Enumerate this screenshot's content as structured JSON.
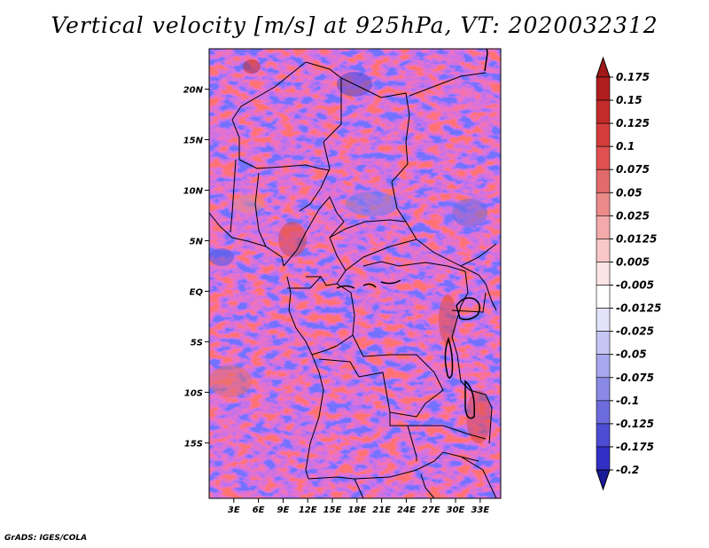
{
  "title": "Vertical velocity [m/s] at 925hPa, VT: 2020032312",
  "credit": "GrADS: IGES/COLA",
  "map": {
    "lon_range": [
      0,
      35.5
    ],
    "lat_range": [
      -20.5,
      24
    ],
    "lat_ticks": [
      {
        "value": 20,
        "label": "20N"
      },
      {
        "value": 15,
        "label": "15N"
      },
      {
        "value": 10,
        "label": "10N"
      },
      {
        "value": 5,
        "label": "5N"
      },
      {
        "value": 0,
        "label": "EQ"
      },
      {
        "value": -5,
        "label": "5S"
      },
      {
        "value": -10,
        "label": "10S"
      },
      {
        "value": -15,
        "label": "15S"
      }
    ],
    "lon_ticks": [
      {
        "value": 3,
        "label": "3E"
      },
      {
        "value": 6,
        "label": "6E"
      },
      {
        "value": 9,
        "label": "9E"
      },
      {
        "value": 12,
        "label": "12E"
      },
      {
        "value": 15,
        "label": "15E"
      },
      {
        "value": 18,
        "label": "18E"
      },
      {
        "value": 21,
        "label": "21E"
      },
      {
        "value": 24,
        "label": "24E"
      },
      {
        "value": 27,
        "label": "27E"
      },
      {
        "value": 30,
        "label": "30E"
      },
      {
        "value": 33,
        "label": "33E"
      }
    ],
    "field_colors": {
      "positive": "#d4534f",
      "negative": "#5a5ae0",
      "neutral": "#ffffff"
    }
  },
  "colorbar": {
    "levels": [
      {
        "label": "0.175",
        "color": "#b01e1e"
      },
      {
        "label": "0.15",
        "color": "#c42c2c"
      },
      {
        "label": "0.125",
        "color": "#d43c3c"
      },
      {
        "label": "0.1",
        "color": "#e05050"
      },
      {
        "label": "0.075",
        "color": "#e26a6a"
      },
      {
        "label": "0.05",
        "color": "#ec8a8a"
      },
      {
        "label": "0.025",
        "color": "#f4aaaa"
      },
      {
        "label": "0.0125",
        "color": "#f8c8c8"
      },
      {
        "label": "0.005",
        "color": "#fbe4e4"
      },
      {
        "label": "-0.005",
        "color": "#ffffff"
      },
      {
        "label": "-0.0125",
        "color": "#e2e2fa"
      },
      {
        "label": "-0.025",
        "color": "#c6c6f4"
      },
      {
        "label": "-0.05",
        "color": "#a8a8ee"
      },
      {
        "label": "-0.075",
        "color": "#8a8ae6"
      },
      {
        "label": "-0.1",
        "color": "#6c6cde"
      },
      {
        "label": "-0.125",
        "color": "#4c4cd4"
      },
      {
        "label": "-0.175",
        "color": "#3030c4"
      },
      {
        "label": "-0.2",
        "color": "#2020aa"
      }
    ],
    "top_color": "#a01818",
    "bottom_color": "#1a1a98"
  }
}
